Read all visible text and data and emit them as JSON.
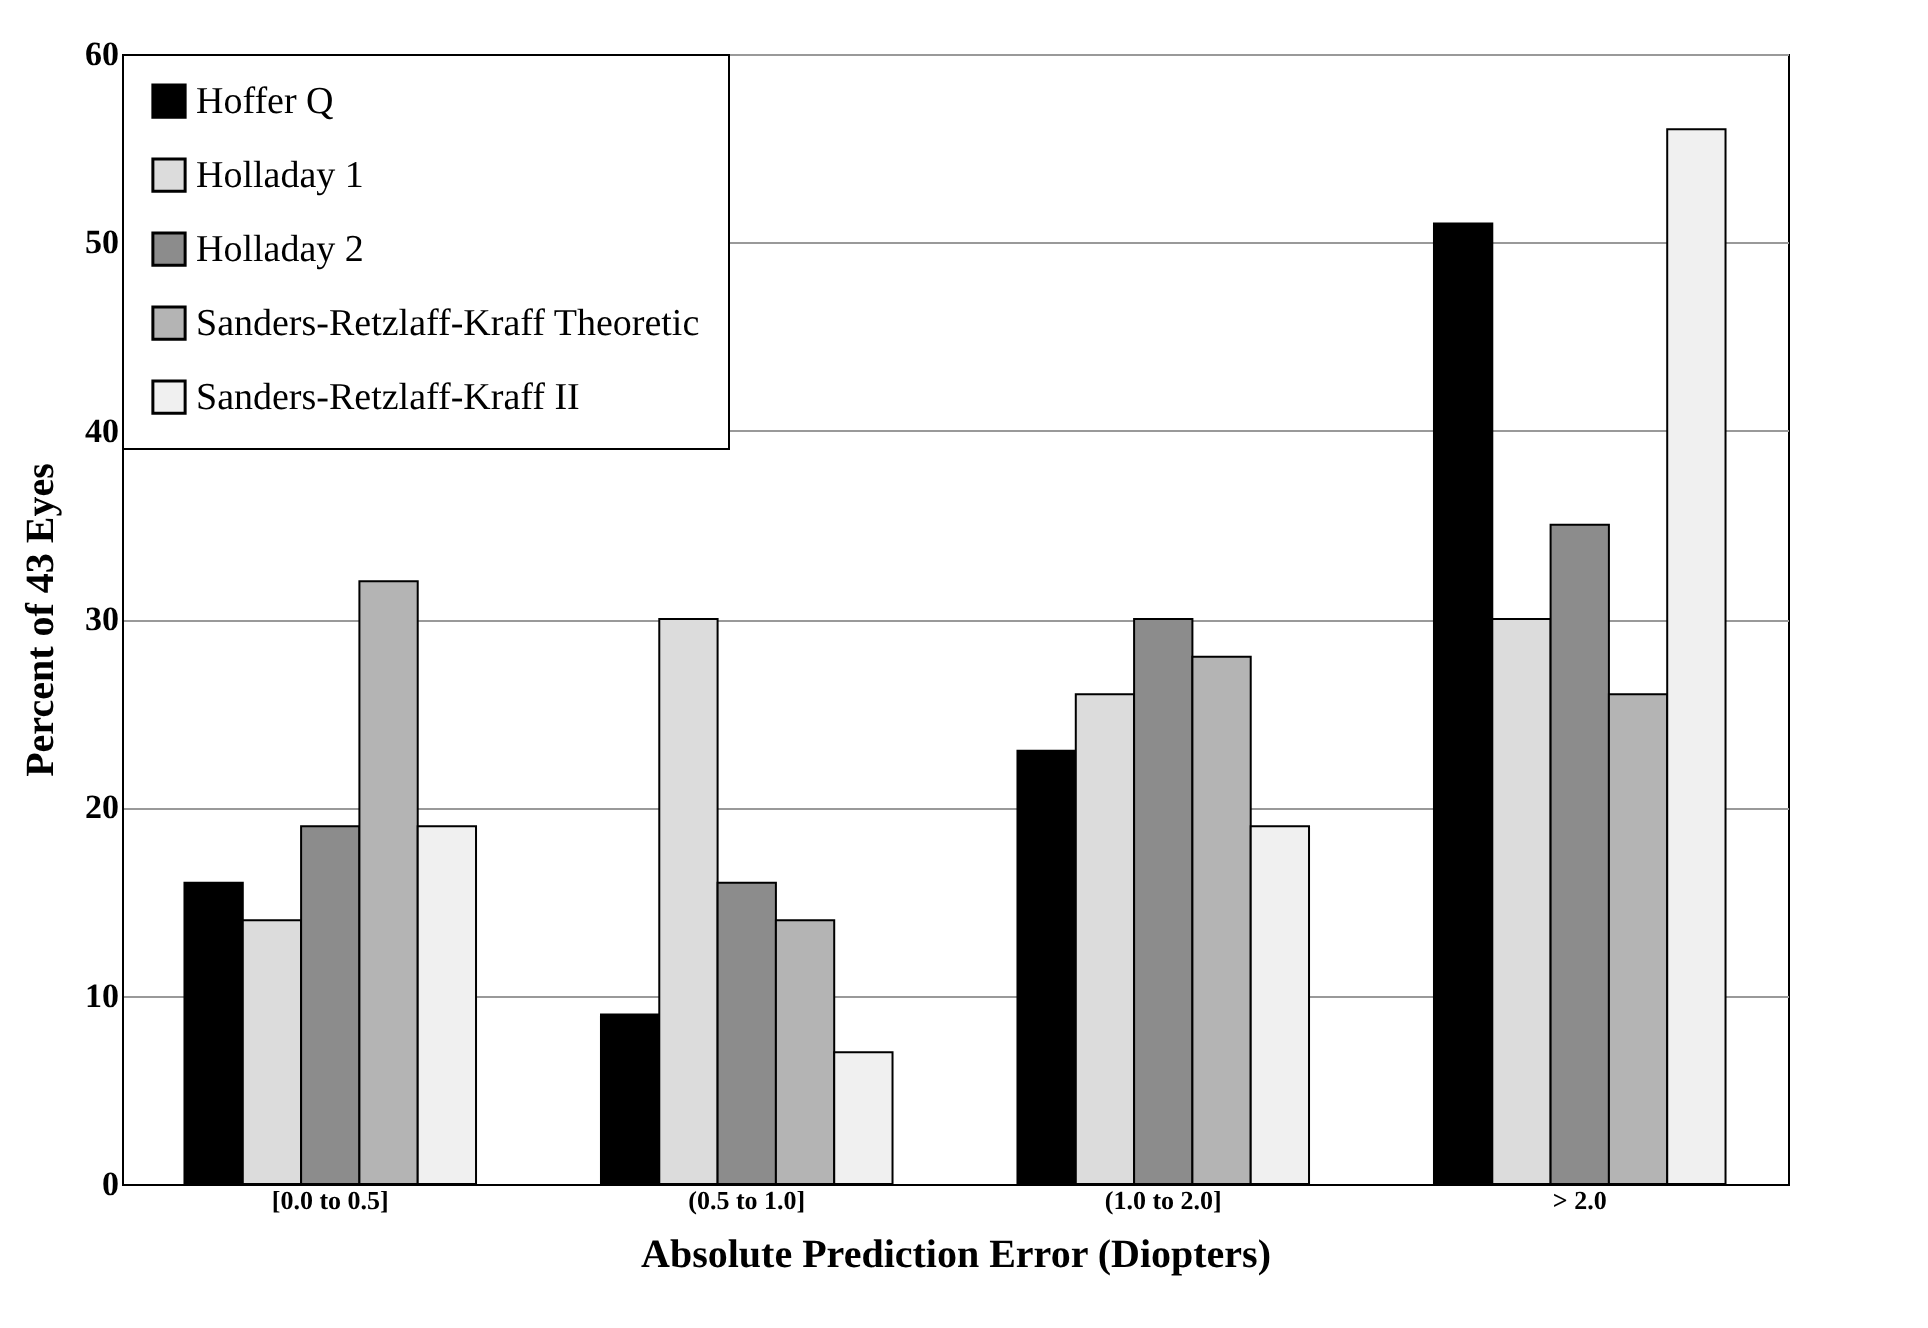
{
  "chart_data": {
    "type": "bar",
    "xlabel": "Absolute Prediction Error (Diopters)",
    "ylabel": "Percent  of  43 Eyes",
    "categories": [
      "[0.0 to 0.5]",
      "(0.5 to 1.0]",
      "(1.0 to 2.0]",
      "> 2.0"
    ],
    "series": [
      {
        "name": "Hoffer Q",
        "color": "#000000",
        "values": [
          16,
          9,
          23,
          51
        ]
      },
      {
        "name": "Holladay 1",
        "color": "#dcdcdc",
        "values": [
          14,
          30,
          26,
          30
        ]
      },
      {
        "name": "Holladay 2",
        "color": "#8c8c8c",
        "values": [
          19,
          16,
          30,
          35
        ]
      },
      {
        "name": "Sanders-Retzlaff-Kraff Theoretic",
        "color": "#b4b4b4",
        "values": [
          32,
          14,
          28,
          26
        ]
      },
      {
        "name": "Sanders-Retzlaff-Kraff II",
        "color": "#f0f0f0",
        "values": [
          19,
          7,
          19,
          56
        ]
      }
    ],
    "ylim": [
      0,
      60
    ],
    "yticks": [
      0,
      10,
      20,
      30,
      40,
      50,
      60
    ],
    "grid": "y",
    "legend": "top left"
  }
}
